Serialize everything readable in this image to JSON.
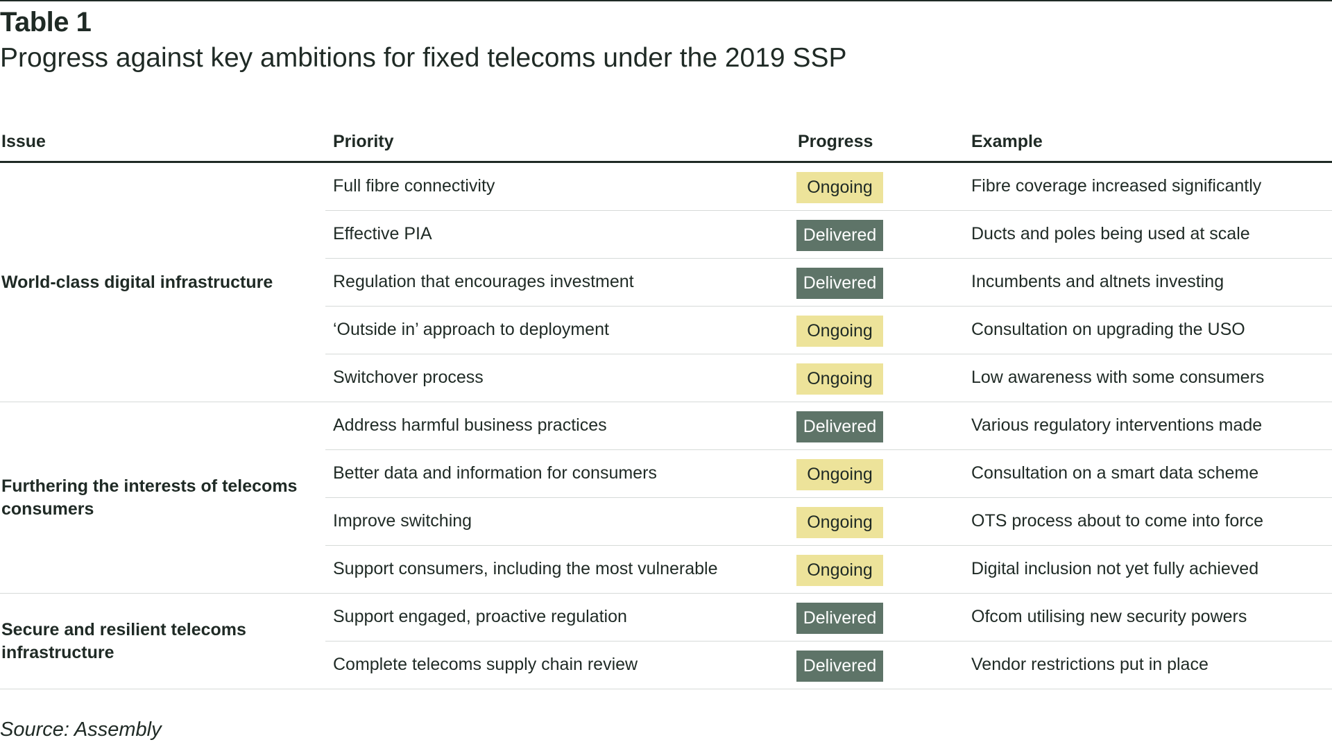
{
  "label": "Table 1",
  "title": "Progress against key ambitions for fixed telecoms under the 2019 SSP",
  "headers": {
    "issue": "Issue",
    "priority": "Priority",
    "progress": "Progress",
    "example": "Example"
  },
  "groups": [
    {
      "issue": "World-class digital infrastructure",
      "rows": [
        {
          "priority": "Full fibre connectivity",
          "progress": "Ongoing",
          "example": "Fibre coverage increased significantly"
        },
        {
          "priority": "Effective PIA",
          "progress": "Delivered",
          "example": "Ducts and poles being used at scale"
        },
        {
          "priority": "Regulation that encourages investment",
          "progress": "Delivered",
          "example": "Incumbents and altnets investing"
        },
        {
          "priority": "‘Outside in’ approach to deployment",
          "progress": "Ongoing",
          "example": "Consultation on upgrading the USO"
        },
        {
          "priority": "Switchover process",
          "progress": "Ongoing",
          "example": "Low awareness with some consumers"
        }
      ]
    },
    {
      "issue": "Furthering the interests of telecoms consumers",
      "rows": [
        {
          "priority": "Address harmful business practices",
          "progress": "Delivered",
          "example": "Various regulatory interventions made"
        },
        {
          "priority": "Better data and information for consumers",
          "progress": "Ongoing",
          "example": "Consultation on a smart data scheme"
        },
        {
          "priority": "Improve switching",
          "progress": "Ongoing",
          "example": "OTS process about to come into force"
        },
        {
          "priority": "Support consumers, including the most vulnerable",
          "progress": "Ongoing",
          "example": "Digital inclusion not yet fully achieved"
        }
      ]
    },
    {
      "issue": "Secure and resilient telecoms infrastructure",
      "rows": [
        {
          "priority": "Support engaged, proactive regulation",
          "progress": "Delivered",
          "example": "Ofcom utilising new security powers"
        },
        {
          "priority": "Complete telecoms supply chain review",
          "progress": "Delivered",
          "example": "Vendor restrictions put in place"
        }
      ]
    }
  ],
  "source": "Source: Assembly",
  "colors": {
    "ongoing": "#ede39a",
    "delivered": "#5e7468",
    "text": "#1f2a25",
    "rule": "#d6dad8"
  }
}
